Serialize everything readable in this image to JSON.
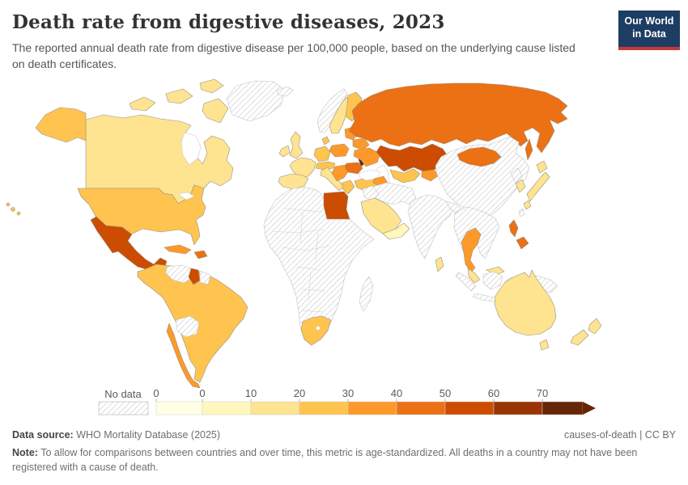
{
  "header": {
    "title": "Death rate from digestive diseases, 2023",
    "subtitle": "The reported annual death rate from digestive disease per 100,000 people, based on the underlying cause listed on death certificates.",
    "logo": {
      "line1": "Our World",
      "line2": "in Data",
      "bg_color": "#1d3d63",
      "accent_color": "#c5383a"
    }
  },
  "chart_data": {
    "type": "choropleth_map",
    "title": "Death rate from digestive diseases, 2023",
    "metric": "Death rate from digestive diseases per 100,000 people",
    "year": "2023",
    "legend": {
      "no_data_label": "No data",
      "ticks": [
        "0",
        "0",
        "10",
        "20",
        "30",
        "40",
        "50",
        "60",
        "70"
      ],
      "bins": [
        {
          "range": "0",
          "color": "#ffffe5"
        },
        {
          "range": "0-10",
          "color": "#fff7bc"
        },
        {
          "range": "10-20",
          "color": "#fee391"
        },
        {
          "range": "20-30",
          "color": "#fec44f"
        },
        {
          "range": "30-40",
          "color": "#fe9929"
        },
        {
          "range": "40-50",
          "color": "#ec7014"
        },
        {
          "range": "50-60",
          "color": "#cc4c02"
        },
        {
          "range": "60-70",
          "color": "#993404"
        },
        {
          "range": "70+",
          "color": "#662506"
        }
      ]
    },
    "countries": {
      "canada": {
        "bin": 2,
        "range": "10-20"
      },
      "united-states": {
        "bin": 3,
        "range": "20-30"
      },
      "hawaii": {
        "bin": 3,
        "range": "20-30"
      },
      "greenland": {
        "bin": "no_data",
        "range": "No data"
      },
      "iceland": {
        "bin": "no_data",
        "range": "No data"
      },
      "mexico": {
        "bin": 6,
        "range": "50-60"
      },
      "guatemala": {
        "bin": 6,
        "range": "50-60"
      },
      "honduras": {
        "bin": "no_data",
        "range": "No data"
      },
      "central-america": {
        "bin": 4,
        "range": "30-40"
      },
      "cuba": {
        "bin": 4,
        "range": "30-40"
      },
      "hispaniola": {
        "bin": 5,
        "range": "40-50"
      },
      "south-america": {
        "bin": 3,
        "range": "20-30"
      },
      "venezuela": {
        "bin": "no_data",
        "range": "No data"
      },
      "guyana": {
        "bin": 6,
        "range": "50-60"
      },
      "suriname": {
        "bin": "no_data",
        "range": "No data"
      },
      "bolivia": {
        "bin": "no_data",
        "range": "No data"
      },
      "chile": {
        "bin": 4,
        "range": "30-40"
      },
      "norway": {
        "bin": "no_data",
        "range": "No data"
      },
      "sweden": {
        "bin": 2,
        "range": "10-20"
      },
      "finland": {
        "bin": 3,
        "range": "20-30"
      },
      "denmark": {
        "bin": 3,
        "range": "20-30"
      },
      "united-kingdom": {
        "bin": 2,
        "range": "10-20"
      },
      "ireland": {
        "bin": 2,
        "range": "10-20"
      },
      "france": {
        "bin": 2,
        "range": "10-20"
      },
      "spain-portugal": {
        "bin": 2,
        "range": "10-20"
      },
      "germany": {
        "bin": 3,
        "range": "20-30"
      },
      "central-europe": {
        "bin": 3,
        "range": "20-30"
      },
      "italy": {
        "bin": 2,
        "range": "10-20"
      },
      "sicily": {
        "bin": 2,
        "range": "10-20"
      },
      "poland": {
        "bin": 4,
        "range": "30-40"
      },
      "hungary-balkans": {
        "bin": 4,
        "range": "30-40"
      },
      "romania": {
        "bin": 5,
        "range": "40-50"
      },
      "moldova": {
        "bin": 8,
        "range": "70+"
      },
      "greece": {
        "bin": 3,
        "range": "20-30"
      },
      "baltics": {
        "bin": 4,
        "range": "30-40"
      },
      "belarus": {
        "bin": 4,
        "range": "30-40"
      },
      "ukraine": {
        "bin": 4,
        "range": "30-40"
      },
      "turkey": {
        "bin": 3,
        "range": "20-30"
      },
      "russia": {
        "bin": 5,
        "range": "40-50"
      },
      "sakhalin": {
        "bin": 5,
        "range": "40-50"
      },
      "kazakhstan": {
        "bin": 6,
        "range": "50-60"
      },
      "uzbekistan-turkmenistan": {
        "bin": 3,
        "range": "20-30"
      },
      "kyrgyzstan-tajikistan": {
        "bin": 4,
        "range": "30-40"
      },
      "caucasus": {
        "bin": 4,
        "range": "30-40"
      },
      "mongolia": {
        "bin": 5,
        "range": "40-50"
      },
      "china": {
        "bin": "no_data",
        "range": "No data"
      },
      "taiwan": {
        "bin": "no_data",
        "range": "No data"
      },
      "north-korea": {
        "bin": "no_data",
        "range": "No data"
      },
      "south-korea": {
        "bin": 2,
        "range": "10-20"
      },
      "japan": {
        "bin": 2,
        "range": "10-20"
      },
      "india": {
        "bin": "no_data",
        "range": "No data"
      },
      "iran-afghanistan-pakistan": {
        "bin": "no_data",
        "range": "No data"
      },
      "iraq-syria": {
        "bin": "no_data",
        "range": "No data"
      },
      "saudi-arabia": {
        "bin": 2,
        "range": "10-20"
      },
      "oman-yemen": {
        "bin": 1,
        "range": "0-10"
      },
      "egypt": {
        "bin": 6,
        "range": "50-60"
      },
      "africa": {
        "bin": "no_data",
        "range": "No data"
      },
      "south-africa": {
        "bin": 3,
        "range": "20-30"
      },
      "madagascar": {
        "bin": "no_data",
        "range": "No data"
      },
      "sri-lanka": {
        "bin": 2,
        "range": "10-20"
      },
      "indochina": {
        "bin": "no_data",
        "range": "No data"
      },
      "thailand": {
        "bin": 4,
        "range": "30-40"
      },
      "malaysia": {
        "bin": 2,
        "range": "10-20"
      },
      "malaysia-borneo": {
        "bin": 2,
        "range": "10-20"
      },
      "philippines": {
        "bin": 5,
        "range": "40-50"
      },
      "philippines-south": {
        "bin": 5,
        "range": "40-50"
      },
      "indonesia": {
        "bin": "no_data",
        "range": "No data"
      },
      "new-guinea": {
        "bin": "no_data",
        "range": "No data"
      },
      "australia": {
        "bin": 2,
        "range": "10-20"
      },
      "tasmania": {
        "bin": 2,
        "range": "10-20"
      },
      "new-zealand": {
        "bin": 2,
        "range": "10-20"
      }
    }
  },
  "footer": {
    "datasource_label": "Data source:",
    "datasource_value": " WHO Mortality Database (2025)",
    "attribution": "causes-of-death | CC BY",
    "note_label": "Note:",
    "note_value": " To allow for comparisons between countries and over time, this metric is age-standardized. All deaths in a country may not have been registered with a cause of death."
  }
}
